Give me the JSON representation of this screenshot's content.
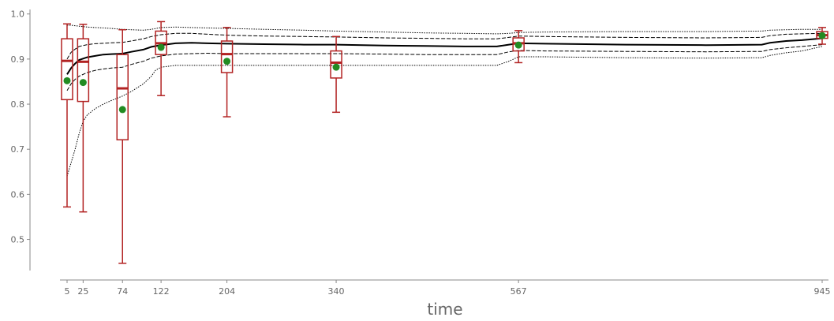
{
  "chart_data": {
    "type": "box",
    "xlabel": "time",
    "ylabel": "",
    "ylim": [
      0.41,
      1.01
    ],
    "xlim": [
      -2,
      950
    ],
    "grid": false,
    "yticks": [
      0.5,
      0.6,
      0.7,
      0.8,
      0.9,
      1.0
    ],
    "ytick_labels": [
      "0.5",
      "0.6",
      "0.7",
      "0.8",
      "0.9",
      "1.0"
    ],
    "xticks": [
      5,
      25,
      74,
      122,
      204,
      340,
      567,
      945
    ],
    "xtick_labels": [
      "5",
      "25",
      "74",
      "122",
      "204",
      "340",
      "567",
      "945"
    ],
    "colors": {
      "box": "#b22222",
      "mean_marker": "#228b22",
      "curve": "#000000",
      "axis": "#888888",
      "tick_text": "#666666"
    },
    "boxes": [
      {
        "x": 5,
        "whisker_low": 0.572,
        "q1": 0.81,
        "median": 0.896,
        "q3": 0.945,
        "whisker_high": 0.978,
        "mean": 0.852
      },
      {
        "x": 25,
        "whisker_low": 0.561,
        "q1": 0.806,
        "median": 0.894,
        "q3": 0.945,
        "whisker_high": 0.977,
        "mean": 0.848
      },
      {
        "x": 74,
        "whisker_low": 0.447,
        "q1": 0.721,
        "median": 0.835,
        "q3": 0.91,
        "whisker_high": 0.965,
        "mean": 0.788
      },
      {
        "x": 122,
        "whisker_low": 0.819,
        "q1": 0.91,
        "median": 0.935,
        "q3": 0.962,
        "whisker_high": 0.983,
        "mean": 0.926
      },
      {
        "x": 204,
        "whisker_low": 0.772,
        "q1": 0.87,
        "median": 0.911,
        "q3": 0.94,
        "whisker_high": 0.97,
        "mean": 0.895
      },
      {
        "x": 340,
        "whisker_low": 0.782,
        "q1": 0.858,
        "median": 0.892,
        "q3": 0.918,
        "whisker_high": 0.95,
        "mean": 0.882
      },
      {
        "x": 567,
        "whisker_low": 0.892,
        "q1": 0.918,
        "median": 0.935,
        "q3": 0.947,
        "whisker_high": 0.963,
        "mean": 0.931
      },
      {
        "x": 945,
        "whisker_low": 0.933,
        "q1": 0.946,
        "median": 0.953,
        "q3": 0.961,
        "whisker_high": 0.97,
        "mean": 0.952
      }
    ],
    "series": [
      {
        "style": "solid",
        "x": [
          5,
          10,
          15,
          20,
          30,
          40,
          50,
          60,
          74,
          85,
          100,
          110,
          122,
          140,
          160,
          180,
          204,
          250,
          300,
          340,
          400,
          450,
          500,
          540,
          555,
          567,
          600,
          700,
          800,
          870,
          880,
          900,
          920,
          945
        ],
        "y": [
          0.866,
          0.88,
          0.89,
          0.898,
          0.904,
          0.907,
          0.91,
          0.911,
          0.912,
          0.916,
          0.921,
          0.927,
          0.931,
          0.935,
          0.936,
          0.935,
          0.934,
          0.933,
          0.932,
          0.932,
          0.93,
          0.929,
          0.928,
          0.928,
          0.932,
          0.935,
          0.934,
          0.932,
          0.931,
          0.932,
          0.936,
          0.94,
          0.942,
          0.946
        ]
      },
      {
        "style": "dashed",
        "x": [
          5,
          10,
          15,
          20,
          30,
          40,
          50,
          60,
          74,
          85,
          100,
          110,
          122,
          140,
          160,
          180,
          204,
          250,
          300,
          340,
          400,
          450,
          500,
          540,
          555,
          567,
          600,
          700,
          800,
          870,
          880,
          900,
          920,
          945
        ],
        "y": [
          0.9,
          0.915,
          0.922,
          0.928,
          0.932,
          0.934,
          0.935,
          0.936,
          0.937,
          0.94,
          0.945,
          0.95,
          0.954,
          0.957,
          0.957,
          0.955,
          0.953,
          0.951,
          0.95,
          0.949,
          0.947,
          0.946,
          0.945,
          0.945,
          0.948,
          0.951,
          0.95,
          0.948,
          0.947,
          0.948,
          0.952,
          0.955,
          0.956,
          0.957
        ]
      },
      {
        "style": "dashed",
        "x": [
          5,
          10,
          15,
          20,
          30,
          40,
          50,
          60,
          74,
          85,
          100,
          110,
          122,
          140,
          160,
          180,
          204,
          250,
          300,
          340,
          400,
          450,
          500,
          540,
          555,
          567,
          600,
          700,
          800,
          870,
          880,
          900,
          920,
          945
        ],
        "y": [
          0.83,
          0.845,
          0.855,
          0.862,
          0.87,
          0.875,
          0.878,
          0.88,
          0.882,
          0.888,
          0.895,
          0.902,
          0.907,
          0.911,
          0.912,
          0.913,
          0.912,
          0.912,
          0.912,
          0.912,
          0.911,
          0.91,
          0.91,
          0.91,
          0.916,
          0.919,
          0.918,
          0.917,
          0.916,
          0.917,
          0.921,
          0.925,
          0.928,
          0.932
        ]
      },
      {
        "style": "dotted",
        "x": [
          5,
          10,
          15,
          20,
          30,
          40,
          50,
          60,
          74,
          85,
          100,
          110,
          122,
          140,
          160,
          180,
          204,
          250,
          300,
          340,
          400,
          450,
          500,
          540,
          555,
          567,
          600,
          700,
          800,
          870,
          880,
          900,
          920,
          945
        ],
        "y": [
          0.975,
          0.975,
          0.974,
          0.973,
          0.971,
          0.97,
          0.969,
          0.968,
          0.966,
          0.965,
          0.964,
          0.966,
          0.97,
          0.971,
          0.97,
          0.969,
          0.968,
          0.966,
          0.964,
          0.962,
          0.96,
          0.958,
          0.957,
          0.956,
          0.957,
          0.959,
          0.96,
          0.961,
          0.961,
          0.962,
          0.964,
          0.965,
          0.966,
          0.966
        ]
      },
      {
        "style": "dotted",
        "x": [
          5,
          10,
          15,
          20,
          25,
          30,
          40,
          50,
          60,
          74,
          85,
          100,
          110,
          115,
          122,
          140,
          160,
          180,
          204,
          250,
          300,
          340,
          400,
          450,
          500,
          540,
          555,
          567,
          600,
          700,
          800,
          870,
          880,
          900,
          920,
          945
        ],
        "y": [
          0.64,
          0.67,
          0.7,
          0.735,
          0.762,
          0.776,
          0.79,
          0.8,
          0.808,
          0.818,
          0.828,
          0.845,
          0.862,
          0.875,
          0.882,
          0.886,
          0.886,
          0.886,
          0.886,
          0.886,
          0.886,
          0.886,
          0.886,
          0.886,
          0.886,
          0.886,
          0.895,
          0.905,
          0.905,
          0.903,
          0.902,
          0.903,
          0.908,
          0.914,
          0.918,
          0.928
        ]
      }
    ]
  }
}
